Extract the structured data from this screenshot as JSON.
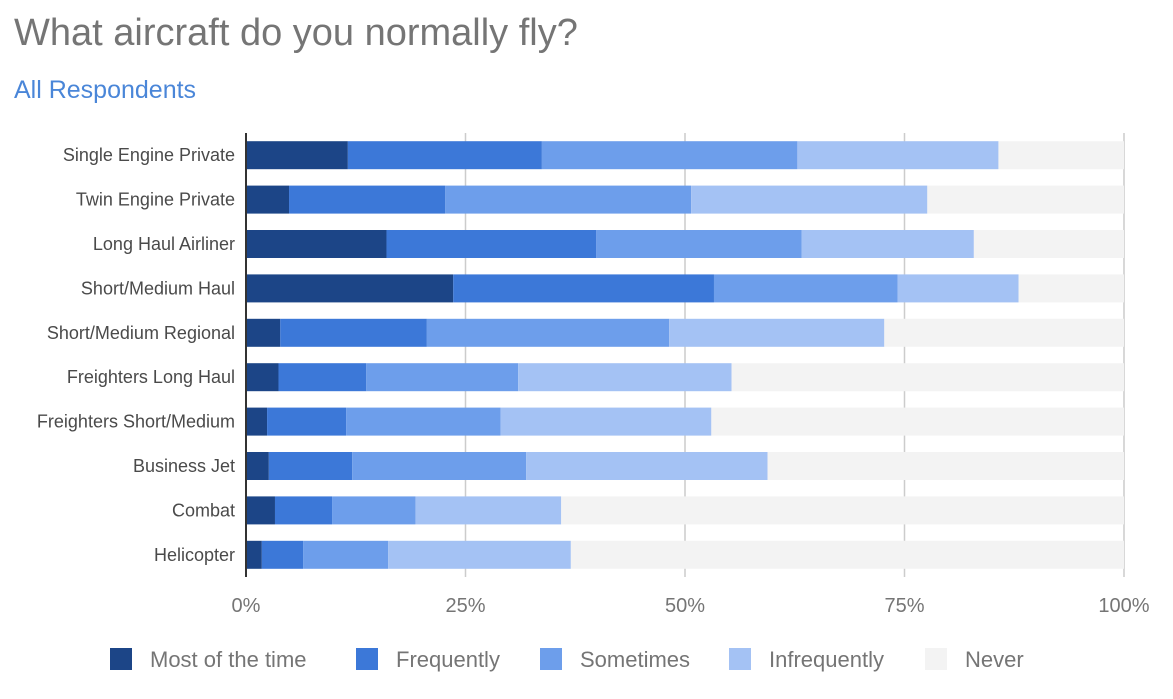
{
  "title": "What aircraft do you normally fly?",
  "subtitle": "All Respondents",
  "colors": {
    "series": [
      "#1c4587",
      "#3c78d8",
      "#6d9eeb",
      "#a4c2f4",
      "#f3f3f3"
    ],
    "grid": "#cccccc",
    "axis": "#333333"
  },
  "chart_data": {
    "type": "bar",
    "orientation": "horizontal",
    "stacked": "percent",
    "categories": [
      "Single Engine Private",
      "Twin Engine Private",
      "Long Haul Airliner",
      "Short/Medium Haul",
      "Short/Medium Regional",
      "Freighters Long Haul",
      "Freighters Short/Medium",
      "Business Jet",
      "Combat",
      "Helicopter"
    ],
    "series": [
      {
        "name": "Most of the time",
        "values": [
          11.6,
          4.9,
          16.0,
          23.6,
          3.9,
          3.7,
          2.4,
          2.6,
          3.3,
          1.8
        ]
      },
      {
        "name": "Frequently",
        "values": [
          22.1,
          17.8,
          23.9,
          29.7,
          16.7,
          10.0,
          9.0,
          9.5,
          6.5,
          4.7
        ]
      },
      {
        "name": "Sometimes",
        "values": [
          29.1,
          28.0,
          23.4,
          20.9,
          27.6,
          17.3,
          17.6,
          19.8,
          9.5,
          9.7
        ]
      },
      {
        "name": "Infrequently",
        "values": [
          22.9,
          26.9,
          19.6,
          13.8,
          24.5,
          24.3,
          24.0,
          27.5,
          16.6,
          20.8
        ]
      },
      {
        "name": "Never",
        "values": [
          14.3,
          22.4,
          17.1,
          12.0,
          27.3,
          44.7,
          47.0,
          40.6,
          64.1,
          63.0
        ]
      }
    ],
    "xticks": [
      "0%",
      "25%",
      "50%",
      "75%",
      "100%"
    ],
    "xlim": [
      0,
      100
    ],
    "grid": true,
    "legend_position": "bottom"
  }
}
